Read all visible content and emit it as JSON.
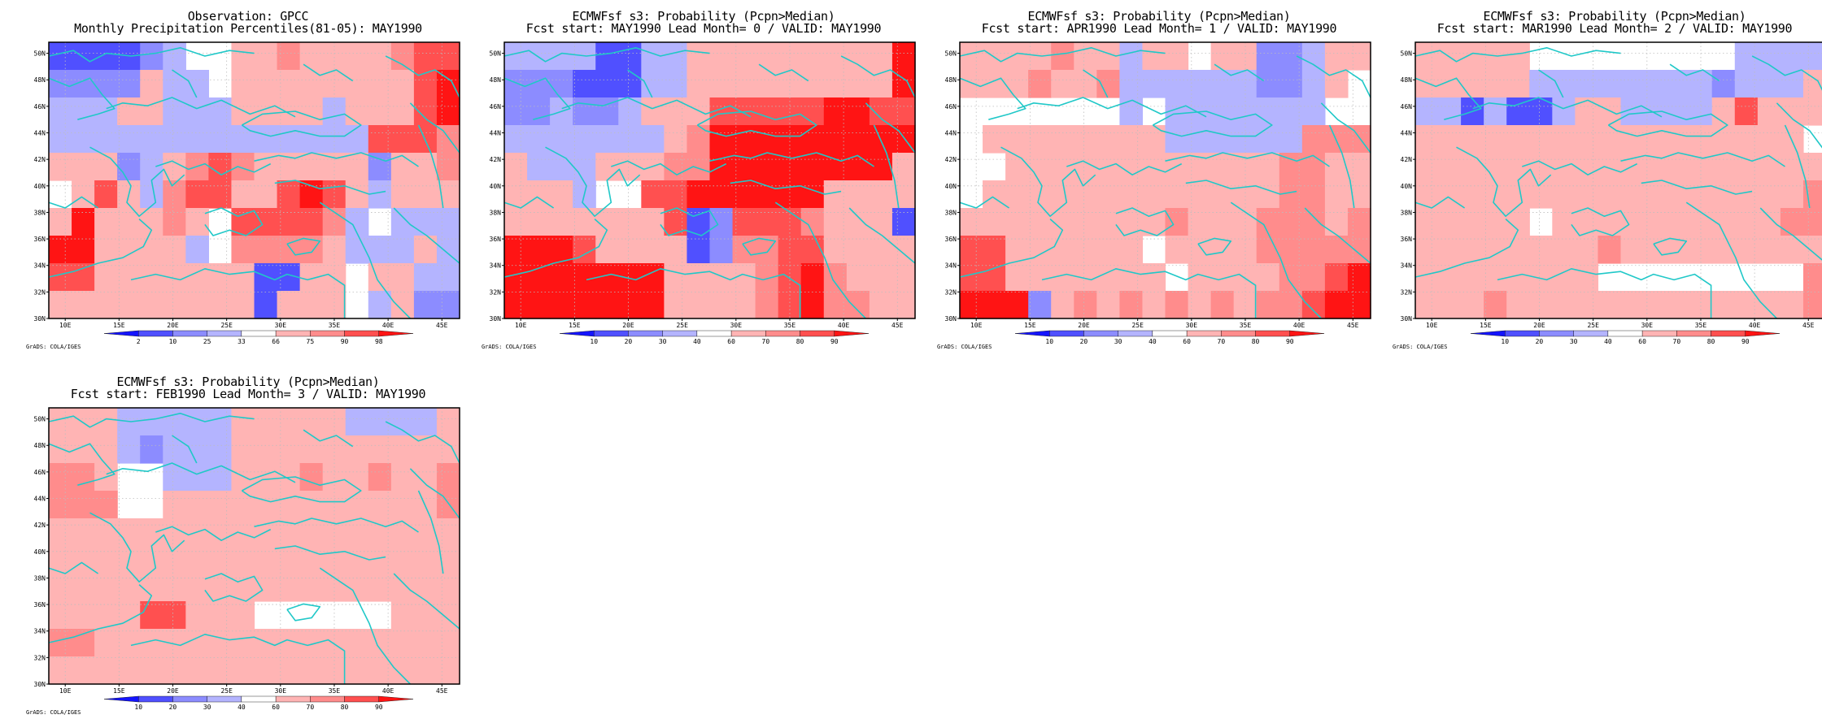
{
  "figure": {
    "panels": [
      {
        "id": "obs",
        "title_line1": "Observation: GPCC",
        "title_line2": "Monthly Precipitation Percentiles(81-05): MAY1990",
        "colorbar_labels": [
          "2",
          "10",
          "25",
          "33",
          "66",
          "75",
          "90",
          "98"
        ],
        "credit": "GrADS: COLA/IGES"
      },
      {
        "id": "lead0",
        "title_line1": "ECMWFsf s3: Probability (Pcpn>Median)",
        "title_line2": "Fcst start: MAY1990   Lead Month= 0 / VALID: MAY1990",
        "colorbar_labels": [
          "10",
          "20",
          "30",
          "40",
          "60",
          "70",
          "80",
          "90"
        ],
        "credit": "GrADS: COLA/IGES"
      },
      {
        "id": "lead1",
        "title_line1": "ECMWFsf s3: Probability (Pcpn>Median)",
        "title_line2": "Fcst start: APR1990   Lead Month= 1 / VALID: MAY1990",
        "colorbar_labels": [
          "10",
          "20",
          "30",
          "40",
          "60",
          "70",
          "80",
          "90"
        ],
        "credit": "GrADS: COLA/IGES"
      },
      {
        "id": "lead2",
        "title_line1": "ECMWFsf s3: Probability (Pcpn>Median)",
        "title_line2": "Fcst start: MAR1990   Lead Month= 2 / VALID: MAY1990",
        "colorbar_labels": [
          "10",
          "20",
          "30",
          "40",
          "60",
          "70",
          "80",
          "90"
        ],
        "credit": "GrADS: COLA/IGES"
      },
      {
        "id": "lead3",
        "title_line1": "ECMWFsf s3: Probability (Pcpn>Median)",
        "title_line2": "Fcst start: FEB1990   Lead Month= 3 / VALID: MAY1990",
        "colorbar_labels": [
          "10",
          "20",
          "30",
          "40",
          "60",
          "70",
          "80",
          "90"
        ],
        "credit": "GrADS: COLA/IGES"
      }
    ],
    "lon_labels": [
      "10E",
      "15E",
      "20E",
      "25E",
      "30E",
      "35E",
      "40E",
      "45E"
    ],
    "lat_labels": [
      "50N",
      "48N",
      "46N",
      "44N",
      "42N",
      "40N",
      "38N",
      "36N",
      "34N",
      "32N",
      "30N"
    ],
    "colorbar_colors": [
      "#1414ff",
      "#5050ff",
      "#8c8cff",
      "#b4b4ff",
      "#ffffff",
      "#ffb4b4",
      "#ff8c8c",
      "#ff5050",
      "#ff1414"
    ],
    "coastline_color": "#20c8c8",
    "panel_grids": [
      [
        [
          1,
          1,
          1,
          1,
          2,
          3,
          4,
          4,
          5,
          5,
          6,
          5,
          5,
          5,
          5,
          6,
          7,
          7
        ],
        [
          2,
          2,
          2,
          2,
          5,
          3,
          3,
          4,
          5,
          5,
          5,
          5,
          5,
          5,
          5,
          5,
          7,
          8
        ],
        [
          3,
          3,
          3,
          5,
          5,
          3,
          3,
          3,
          5,
          5,
          5,
          5,
          3,
          5,
          5,
          5,
          7,
          8
        ],
        [
          3,
          3,
          3,
          3,
          3,
          3,
          3,
          3,
          3,
          3,
          3,
          3,
          3,
          3,
          7,
          7,
          7,
          6
        ],
        [
          5,
          5,
          5,
          2,
          3,
          5,
          6,
          7,
          6,
          5,
          5,
          5,
          5,
          5,
          2,
          5,
          5,
          6
        ],
        [
          4,
          5,
          7,
          5,
          3,
          6,
          7,
          7,
          5,
          5,
          7,
          8,
          7,
          5,
          3,
          5,
          5,
          5
        ],
        [
          5,
          8,
          5,
          5,
          5,
          6,
          5,
          4,
          7,
          7,
          7,
          7,
          6,
          3,
          4,
          3,
          3,
          3
        ],
        [
          8,
          8,
          5,
          5,
          5,
          5,
          3,
          4,
          6,
          6,
          6,
          6,
          5,
          3,
          3,
          3,
          5,
          3
        ],
        [
          7,
          7,
          5,
          5,
          5,
          5,
          5,
          5,
          5,
          1,
          1,
          5,
          5,
          4,
          5,
          5,
          3,
          3
        ],
        [
          5,
          5,
          5,
          5,
          5,
          5,
          5,
          5,
          5,
          1,
          5,
          5,
          5,
          4,
          3,
          5,
          2,
          2
        ]
      ],
      [
        [
          3,
          3,
          3,
          3,
          1,
          1,
          3,
          3,
          5,
          5,
          5,
          5,
          5,
          5,
          5,
          5,
          5,
          8
        ],
        [
          2,
          2,
          2,
          1,
          1,
          1,
          3,
          3,
          5,
          5,
          5,
          5,
          5,
          5,
          5,
          5,
          5,
          8
        ],
        [
          2,
          2,
          3,
          2,
          2,
          3,
          5,
          5,
          5,
          7,
          7,
          7,
          7,
          7,
          8,
          8,
          7,
          7
        ],
        [
          3,
          3,
          3,
          3,
          3,
          3,
          3,
          5,
          6,
          8,
          8,
          8,
          8,
          8,
          8,
          8,
          8,
          8
        ],
        [
          5,
          3,
          3,
          3,
          5,
          5,
          5,
          6,
          6,
          8,
          8,
          8,
          8,
          8,
          8,
          8,
          8,
          5
        ],
        [
          5,
          5,
          5,
          3,
          4,
          4,
          7,
          7,
          8,
          8,
          8,
          8,
          8,
          8,
          5,
          5,
          5,
          5
        ],
        [
          5,
          5,
          5,
          5,
          5,
          5,
          5,
          7,
          1,
          2,
          7,
          7,
          7,
          6,
          5,
          5,
          5,
          1
        ],
        [
          8,
          8,
          8,
          7,
          5,
          5,
          5,
          5,
          1,
          2,
          6,
          6,
          7,
          7,
          5,
          5,
          5,
          5
        ],
        [
          8,
          8,
          8,
          8,
          8,
          8,
          8,
          5,
          5,
          5,
          5,
          6,
          7,
          8,
          6,
          5,
          5,
          5
        ],
        [
          8,
          8,
          8,
          8,
          8,
          8,
          8,
          5,
          5,
          5,
          5,
          6,
          7,
          8,
          6,
          6,
          5,
          5
        ]
      ],
      [
        [
          5,
          5,
          5,
          5,
          6,
          5,
          5,
          3,
          5,
          5,
          4,
          5,
          5,
          2,
          2,
          3,
          5,
          5
        ],
        [
          5,
          5,
          5,
          6,
          5,
          5,
          6,
          3,
          3,
          3,
          3,
          3,
          3,
          2,
          2,
          3,
          5,
          4
        ],
        [
          4,
          4,
          4,
          4,
          4,
          4,
          4,
          3,
          4,
          3,
          3,
          3,
          3,
          3,
          3,
          3,
          4,
          4
        ],
        [
          4,
          5,
          5,
          5,
          5,
          5,
          5,
          5,
          5,
          3,
          3,
          3,
          3,
          3,
          3,
          6,
          6,
          6
        ],
        [
          4,
          4,
          5,
          5,
          5,
          5,
          5,
          5,
          5,
          5,
          5,
          5,
          5,
          5,
          6,
          6,
          5,
          5
        ],
        [
          4,
          5,
          5,
          5,
          5,
          5,
          5,
          5,
          5,
          5,
          5,
          5,
          5,
          5,
          6,
          6,
          5,
          5
        ],
        [
          5,
          5,
          5,
          5,
          5,
          5,
          5,
          5,
          5,
          6,
          5,
          5,
          5,
          6,
          6,
          6,
          5,
          6
        ],
        [
          7,
          7,
          5,
          5,
          5,
          5,
          5,
          5,
          4,
          5,
          5,
          5,
          5,
          6,
          6,
          6,
          6,
          6
        ],
        [
          7,
          7,
          5,
          5,
          5,
          5,
          5,
          5,
          5,
          4,
          5,
          5,
          5,
          5,
          6,
          6,
          7,
          8
        ],
        [
          8,
          8,
          8,
          2,
          5,
          6,
          5,
          6,
          5,
          6,
          5,
          6,
          5,
          6,
          6,
          7,
          8,
          8
        ]
      ],
      [
        [
          5,
          5,
          5,
          5,
          5,
          4,
          4,
          4,
          4,
          4,
          4,
          4,
          4,
          4,
          3,
          3,
          3,
          3
        ],
        [
          5,
          5,
          5,
          5,
          5,
          3,
          3,
          3,
          3,
          3,
          3,
          3,
          3,
          2,
          3,
          3,
          3,
          5
        ],
        [
          3,
          3,
          1,
          3,
          1,
          1,
          3,
          5,
          5,
          3,
          3,
          3,
          3,
          5,
          7,
          5,
          5,
          5
        ],
        [
          5,
          5,
          5,
          5,
          5,
          5,
          5,
          5,
          5,
          5,
          5,
          5,
          5,
          5,
          5,
          5,
          5,
          4
        ],
        [
          5,
          5,
          5,
          5,
          5,
          5,
          5,
          5,
          5,
          5,
          5,
          5,
          5,
          5,
          5,
          5,
          5,
          5
        ],
        [
          5,
          5,
          5,
          5,
          5,
          5,
          5,
          5,
          5,
          5,
          5,
          5,
          5,
          5,
          5,
          5,
          5,
          6
        ],
        [
          5,
          5,
          5,
          5,
          5,
          4,
          5,
          5,
          5,
          5,
          5,
          5,
          5,
          5,
          5,
          5,
          6,
          6
        ],
        [
          5,
          5,
          5,
          5,
          5,
          5,
          5,
          5,
          6,
          5,
          5,
          5,
          5,
          5,
          5,
          5,
          5,
          5
        ],
        [
          5,
          5,
          5,
          5,
          5,
          5,
          5,
          5,
          4,
          4,
          4,
          4,
          4,
          4,
          4,
          4,
          4,
          6
        ],
        [
          5,
          5,
          5,
          6,
          5,
          5,
          5,
          5,
          5,
          5,
          5,
          5,
          5,
          5,
          5,
          5,
          5,
          6
        ]
      ],
      [
        [
          5,
          5,
          5,
          3,
          3,
          3,
          3,
          3,
          5,
          5,
          5,
          5,
          5,
          3,
          3,
          3,
          3,
          5
        ],
        [
          5,
          5,
          5,
          3,
          2,
          3,
          3,
          3,
          5,
          5,
          5,
          5,
          5,
          5,
          5,
          5,
          5,
          5
        ],
        [
          6,
          6,
          5,
          4,
          4,
          3,
          3,
          3,
          5,
          5,
          5,
          6,
          5,
          5,
          6,
          5,
          5,
          6
        ],
        [
          6,
          6,
          6,
          4,
          4,
          5,
          5,
          5,
          5,
          5,
          5,
          5,
          5,
          5,
          5,
          5,
          5,
          6
        ],
        [
          5,
          5,
          5,
          5,
          5,
          5,
          5,
          5,
          5,
          5,
          5,
          5,
          5,
          5,
          5,
          5,
          5,
          5
        ],
        [
          5,
          5,
          5,
          5,
          5,
          5,
          5,
          5,
          5,
          5,
          5,
          5,
          5,
          5,
          5,
          5,
          5,
          5
        ],
        [
          5,
          5,
          5,
          5,
          5,
          5,
          5,
          5,
          5,
          5,
          5,
          5,
          5,
          5,
          5,
          5,
          5,
          5
        ],
        [
          5,
          5,
          5,
          5,
          7,
          7,
          5,
          5,
          5,
          4,
          4,
          4,
          4,
          4,
          4,
          5,
          5,
          5
        ],
        [
          6,
          6,
          5,
          5,
          5,
          5,
          5,
          5,
          5,
          5,
          5,
          5,
          5,
          5,
          5,
          5,
          5,
          5
        ],
        [
          5,
          5,
          5,
          5,
          5,
          5,
          5,
          5,
          5,
          5,
          5,
          5,
          5,
          5,
          5,
          5,
          5,
          5
        ]
      ]
    ]
  }
}
